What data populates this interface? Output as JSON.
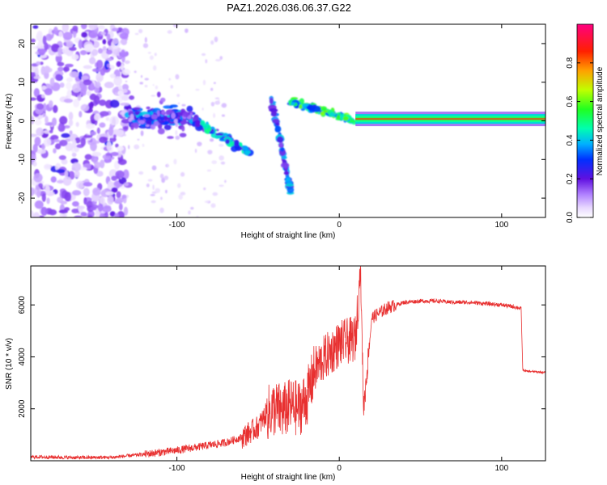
{
  "figure_title": "PAZ1.2026.036.06.37.G22",
  "chart_data": [
    {
      "type": "heatmap",
      "title": "",
      "xlabel": "Height of straight line (km)",
      "ylabel": "Frequency (Hz)",
      "xlim": [
        -190,
        127
      ],
      "ylim": [
        -25,
        25
      ],
      "xticks": [
        -100,
        0,
        100
      ],
      "yticks": [
        -20,
        -10,
        0,
        10,
        20
      ],
      "colorbar": {
        "label": "Normalized spectral amplitude",
        "range": [
          0,
          1
        ],
        "ticks": [
          0.0,
          0.2,
          0.4,
          0.6,
          0.8
        ]
      },
      "features": [
        {
          "name": "noise-cloud",
          "x_range": [
            -190,
            -130
          ],
          "freq_range": [
            -25,
            25
          ],
          "amplitude": 0.1
        },
        {
          "name": "scatter-band",
          "x_range": [
            -130,
            -90
          ],
          "freq_center": 1,
          "amplitude": 0.3
        },
        {
          "name": "descending-arc-1",
          "x_range": [
            -90,
            -55
          ],
          "freq_range": [
            0,
            -8
          ],
          "amplitude": 0.35
        },
        {
          "name": "descending-arc-2",
          "x_range": [
            -42,
            -30
          ],
          "freq_range": [
            6,
            -18
          ],
          "amplitude": 0.3
        },
        {
          "name": "convergence",
          "x_range": [
            -30,
            10
          ],
          "freq_range": [
            5,
            0
          ],
          "amplitude": 0.55
        },
        {
          "name": "main-tone",
          "x_range": [
            10,
            127
          ],
          "freq_center": 0.5,
          "amplitude": 0.9
        }
      ]
    },
    {
      "type": "line",
      "title": "",
      "xlabel": "Height of straight line (km)",
      "ylabel": "SNR (10 * v/v)",
      "xlim": [
        -190,
        127
      ],
      "ylim": [
        0,
        7500
      ],
      "xticks": [
        -100,
        0,
        100
      ],
      "yticks": [
        2000,
        4000,
        6000
      ],
      "series": [
        {
          "name": "SNR",
          "color": "#e83030",
          "x": [
            -190,
            -160,
            -140,
            -120,
            -100,
            -90,
            -80,
            -70,
            -60,
            -50,
            -45,
            -40,
            -35,
            -30,
            -25,
            -20,
            -15,
            -10,
            -5,
            0,
            5,
            10,
            12,
            13,
            15,
            20,
            30,
            40,
            50,
            60,
            70,
            80,
            90,
            100,
            110,
            112,
            113,
            115,
            127
          ],
          "values": [
            150,
            120,
            130,
            250,
            400,
            500,
            600,
            700,
            900,
            1300,
            1800,
            2000,
            1900,
            2100,
            2000,
            2400,
            3500,
            3900,
            4200,
            4500,
            4600,
            4700,
            6500,
            7500,
            2000,
            5500,
            5900,
            6100,
            6150,
            6150,
            6100,
            6100,
            6050,
            6000,
            5900,
            5850,
            3500,
            3450,
            3400
          ]
        }
      ]
    }
  ]
}
